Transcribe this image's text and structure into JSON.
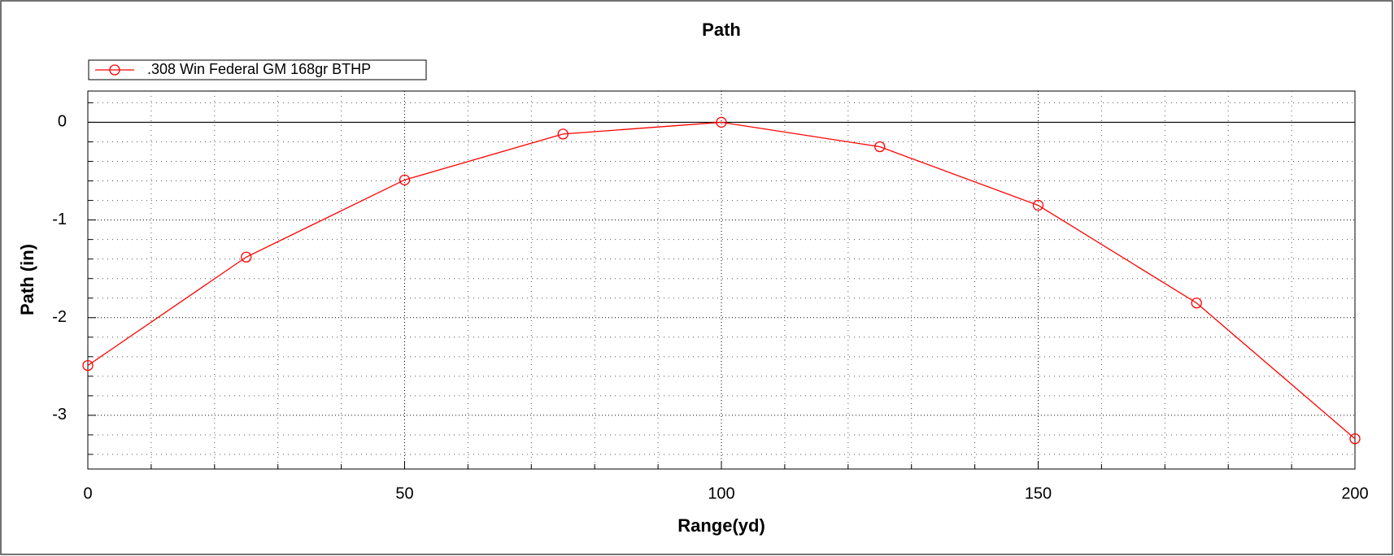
{
  "chart_data": {
    "type": "line",
    "title": "Path",
    "x_label": "Range(yd)",
    "y_label": "Path (in)",
    "x": [
      0,
      25,
      50,
      75,
      100,
      125,
      150,
      175,
      200
    ],
    "series": [
      {
        "name": ".308 Win Federal GM 168gr BTHP",
        "color": "#ff0000",
        "values": [
          -2.49,
          -1.38,
          -0.59,
          -0.12,
          0,
          -0.25,
          -0.85,
          -1.85,
          -3.24
        ]
      }
    ],
    "xlim": [
      0,
      200
    ],
    "xticks": [
      0,
      50,
      100,
      150,
      200
    ],
    "x_minor_ticks": [
      10,
      20,
      30,
      40,
      60,
      70,
      80,
      90,
      110,
      120,
      130,
      140,
      160,
      170,
      180,
      190
    ],
    "ylim": [
      -3.55,
      0.32
    ],
    "yticks": [
      0,
      -1,
      -2,
      -3
    ],
    "y_minor_ticks": [
      0.2,
      -0.2,
      -0.4,
      -0.6,
      -0.8,
      -1.2,
      -1.4,
      -1.6,
      -1.8,
      -2.2,
      -2.4,
      -2.6,
      -2.8,
      -3.2,
      -3.4
    ],
    "grid": true,
    "legend": "top-left"
  }
}
